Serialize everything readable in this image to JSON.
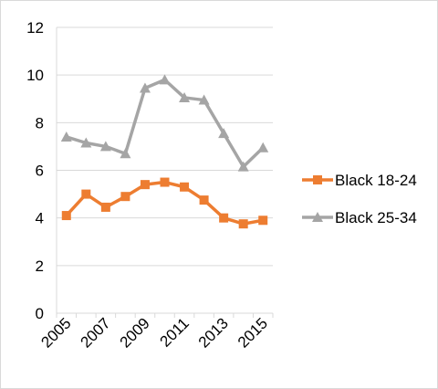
{
  "chart_data": {
    "type": "line",
    "x": [
      2005,
      2006,
      2007,
      2008,
      2009,
      2010,
      2011,
      2012,
      2013,
      2014,
      2015
    ],
    "x_tick_labels": [
      "2005",
      "2007",
      "2009",
      "2011",
      "2013",
      "2015"
    ],
    "ylim": [
      0,
      12
    ],
    "y_ticks": [
      0,
      2,
      4,
      6,
      8,
      10,
      12
    ],
    "grid": "horizontal",
    "legend_position": "right",
    "title": "",
    "xlabel": "",
    "ylabel": "",
    "series": [
      {
        "name": "Black 18-24",
        "color": "#ed7d31",
        "marker": "square",
        "values": [
          4.1,
          5.0,
          4.45,
          4.9,
          5.4,
          5.5,
          5.3,
          4.75,
          4.0,
          3.75,
          3.9
        ]
      },
      {
        "name": "Black 25-34",
        "color": "#a5a5a5",
        "marker": "triangle",
        "values": [
          7.4,
          7.15,
          7.0,
          6.7,
          9.45,
          9.8,
          9.05,
          8.95,
          7.55,
          6.15,
          6.95
        ]
      }
    ]
  }
}
